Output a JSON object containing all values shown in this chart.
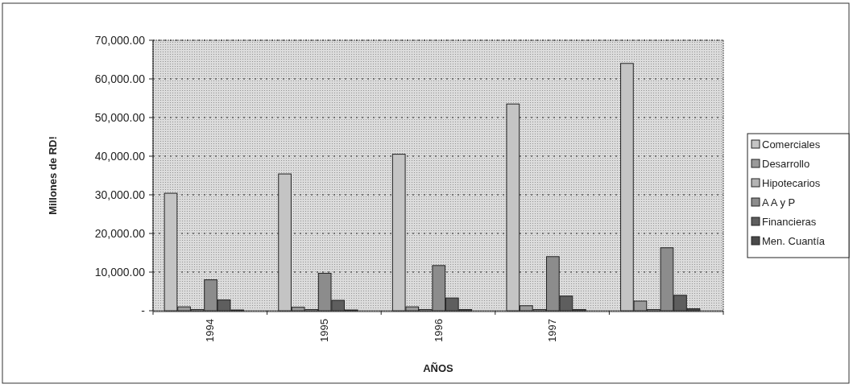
{
  "chart_data": {
    "type": "bar",
    "xlabel": "AÑOS",
    "ylabel": "Millones de RD!",
    "categories": [
      "1994",
      "1995",
      "1996",
      "1997",
      null
    ],
    "series": [
      {
        "name": "Comerciales",
        "color": "#c4c4c4",
        "values": [
          30400,
          35400,
          40500,
          53500,
          64000
        ]
      },
      {
        "name": "Desarrollo",
        "color": "#9a9a9a",
        "values": [
          1000,
          900,
          1000,
          1300,
          2500
        ]
      },
      {
        "name": "Hipotecarios",
        "color": "#b4b4b4",
        "values": [
          300,
          300,
          300,
          300,
          300
        ]
      },
      {
        "name": "A A y P",
        "color": "#8c8c8c",
        "values": [
          8000,
          9700,
          11700,
          14000,
          16300
        ]
      },
      {
        "name": "Financieras",
        "color": "#5e5e5e",
        "values": [
          2800,
          2700,
          3300,
          3800,
          4000
        ]
      },
      {
        "name": "Men. Cuantía",
        "color": "#4a4a4a",
        "values": [
          200,
          200,
          300,
          300,
          500
        ]
      }
    ],
    "ylim": [
      0,
      70000
    ],
    "yticks": [
      {
        "value": 0,
        "label": "-"
      },
      {
        "value": 10000,
        "label": "10,000.00"
      },
      {
        "value": 20000,
        "label": "20,000.00"
      },
      {
        "value": 30000,
        "label": "30,000.00"
      },
      {
        "value": 40000,
        "label": "40,000.00"
      },
      {
        "value": 50000,
        "label": "50,000.00"
      },
      {
        "value": 60000,
        "label": "60,000.00"
      },
      {
        "value": 70000,
        "label": "70,000.00"
      }
    ],
    "grid": "y",
    "legend": "right"
  }
}
